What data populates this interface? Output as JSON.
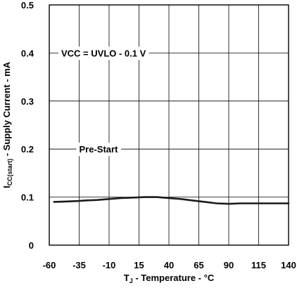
{
  "chart_data": {
    "type": "line",
    "title": "",
    "xlabel": {
      "main": "T",
      "sub": "J",
      "rest": " - Temperature - °C"
    },
    "ylabel": {
      "main": "I",
      "sub": "CC(start)",
      "rest": " - Supply Current - mA"
    },
    "xlim": [
      -60,
      140
    ],
    "ylim": [
      0,
      0.5
    ],
    "x_ticks": [
      -60,
      -35,
      -10,
      15,
      40,
      65,
      90,
      115,
      140
    ],
    "x_tick_labels": [
      "-60",
      "-35",
      "-10",
      "15",
      "40",
      "65",
      "90",
      "115",
      "140"
    ],
    "y_ticks": [
      0,
      0.1,
      0.2,
      0.3,
      0.4,
      0.5
    ],
    "y_tick_labels": [
      "0",
      "0.1",
      "0.2",
      "0.3",
      "0.4",
      "0.5"
    ],
    "grid": true,
    "annotations": [
      {
        "text": "VCC = UVLO - 0.1 V",
        "x": -50,
        "y": 0.4
      },
      {
        "text": "Pre-Start",
        "x": -35,
        "y": 0.2
      }
    ],
    "series": [
      {
        "color": "#1a1a1a",
        "x": [
          -56,
          -45,
          -35,
          -30,
          -20,
          -10,
          0,
          10,
          20,
          30,
          40,
          50,
          60,
          70,
          80,
          90,
          100,
          110,
          120,
          130,
          140
        ],
        "y": [
          0.09,
          0.091,
          0.092,
          0.093,
          0.094,
          0.096,
          0.098,
          0.099,
          0.1,
          0.1,
          0.098,
          0.096,
          0.093,
          0.09,
          0.087,
          0.086,
          0.087,
          0.087,
          0.087,
          0.087,
          0.087
        ]
      }
    ]
  }
}
